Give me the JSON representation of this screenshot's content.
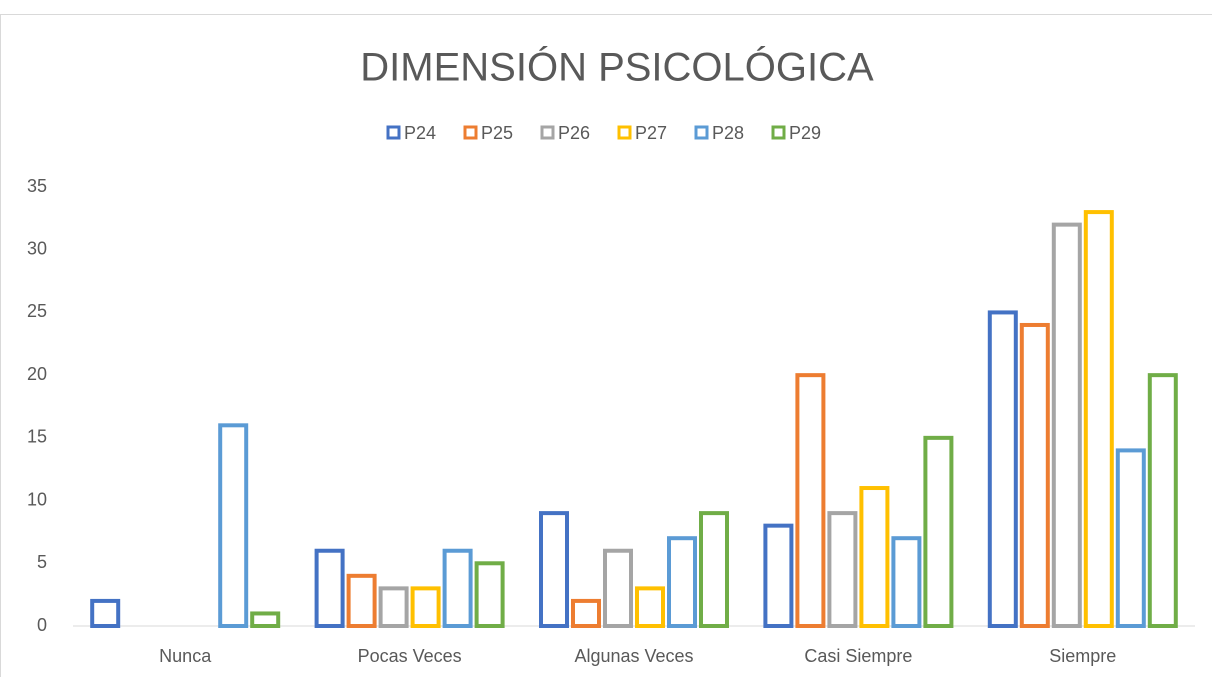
{
  "chart_data": {
    "type": "bar",
    "title": "DIMENSIÓN PSICOLÓGICA",
    "categories": [
      "Nunca",
      "Pocas Veces",
      "Algunas Veces",
      "Casi Siempre",
      "Siempre"
    ],
    "series": [
      {
        "name": "P24",
        "color": "#4472c4",
        "values": [
          2,
          6,
          9,
          8,
          25
        ]
      },
      {
        "name": "P25",
        "color": "#ed7d31",
        "values": [
          0,
          4,
          2,
          20,
          24
        ]
      },
      {
        "name": "P26",
        "color": "#a5a5a5",
        "values": [
          0,
          3,
          6,
          9,
          32
        ]
      },
      {
        "name": "P27",
        "color": "#ffc000",
        "values": [
          0,
          3,
          3,
          11,
          33
        ]
      },
      {
        "name": "P28",
        "color": "#5b9bd5",
        "values": [
          16,
          6,
          7,
          7,
          14
        ]
      },
      {
        "name": "P29",
        "color": "#70ad47",
        "values": [
          1,
          5,
          9,
          15,
          20
        ]
      }
    ],
    "ylim": [
      0,
      35
    ],
    "yticks": [
      0,
      5,
      10,
      15,
      20,
      25,
      30,
      35
    ],
    "legend": "top"
  }
}
